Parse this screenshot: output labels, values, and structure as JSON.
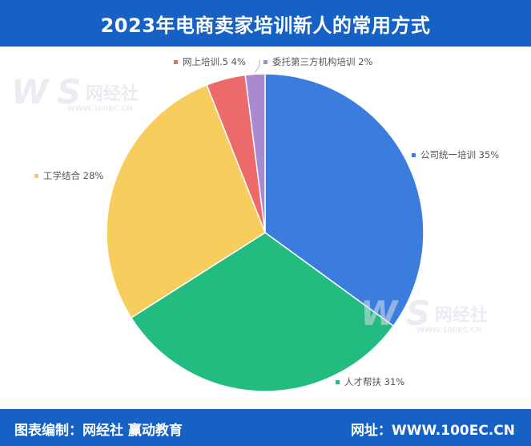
{
  "header": {
    "title": "2023年电商卖家培训新人的常用方式"
  },
  "footer": {
    "left_text": "图表编制：网经社 赢动教育",
    "right_text": "网址：WWW.100EC.CN"
  },
  "watermark": {
    "logo": "W S",
    "brand": "网经社",
    "url": "WWW.100EC.CN"
  },
  "colors": {
    "header_bg": "#1661c4",
    "slice_blue": "#3b7ddd",
    "slice_green": "#22bb80",
    "slice_yellow": "#f7cd5d",
    "slice_red": "#ec6a6a",
    "slice_purple": "#a98ad0"
  },
  "chart_data": {
    "type": "pie",
    "title": "2023年电商卖家培训新人的常用方式",
    "slices": [
      {
        "label": "公司统一培训",
        "value": 35,
        "display": "公司统一培训 35%",
        "color": "#3b7ddd"
      },
      {
        "label": "人才帮扶",
        "value": 31,
        "display": "人才帮扶 31%",
        "color": "#22bb80"
      },
      {
        "label": "工学结合",
        "value": 28,
        "display": "工学结合 28%",
        "color": "#f7cd5d"
      },
      {
        "label": "网上培训",
        "value": 4,
        "display": "网上培训.5 4%",
        "color": "#ec6a6a"
      },
      {
        "label": "委托第三方机构培训",
        "value": 2,
        "display": "委托第三方机构培训 2%",
        "color": "#a98ad0"
      }
    ]
  }
}
